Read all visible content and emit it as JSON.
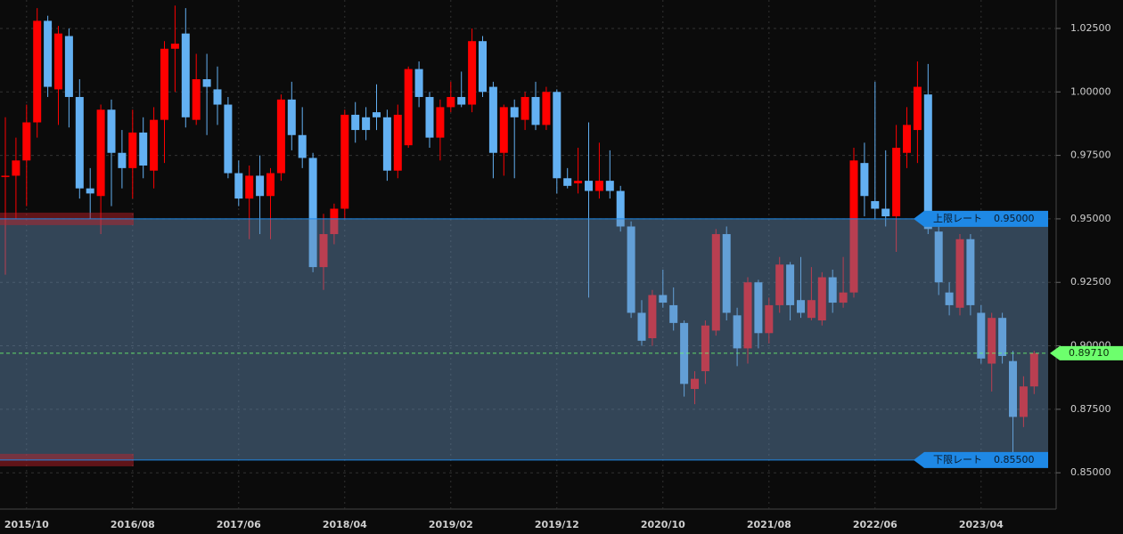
{
  "chart_data": {
    "type": "candlestick",
    "categories": [
      null,
      null,
      "2015/10",
      null,
      null,
      null,
      null,
      null,
      null,
      null,
      null,
      null,
      "2016/08",
      null,
      null,
      null,
      null,
      null,
      null,
      null,
      null,
      null,
      "2017/06",
      null,
      null,
      null,
      null,
      null,
      null,
      null,
      null,
      null,
      "2018/04",
      null,
      null,
      null,
      null,
      null,
      null,
      null,
      null,
      null,
      "2019/02",
      null,
      null,
      null,
      null,
      null,
      null,
      null,
      null,
      null,
      "2019/12",
      null,
      null,
      null,
      null,
      null,
      null,
      null,
      null,
      null,
      "2020/10",
      null,
      null,
      null,
      null,
      null,
      null,
      null,
      null,
      null,
      "2021/08",
      null,
      null,
      null,
      null,
      null,
      null,
      null,
      null,
      null,
      "2022/06",
      null,
      null,
      null,
      null,
      null,
      null,
      null,
      null,
      null,
      "2023/04",
      null,
      null,
      null,
      null,
      null
    ],
    "open": [
      0.9665,
      0.967,
      0.973,
      0.988,
      1.028,
      1.001,
      1.022,
      0.998,
      0.962,
      0.959,
      0.993,
      0.976,
      0.97,
      0.984,
      0.969,
      0.989,
      1.017,
      1.023,
      0.989,
      1.005,
      1.001,
      0.995,
      0.968,
      0.958,
      0.967,
      0.959,
      0.968,
      0.997,
      0.983,
      0.974,
      0.931,
      0.944,
      0.954,
      0.991,
      0.99,
      0.992,
      0.99,
      0.969,
      0.979,
      1.009,
      0.998,
      0.982,
      0.994,
      0.998,
      0.995,
      1.02,
      1.002,
      0.976,
      0.994,
      0.989,
      0.998,
      0.987,
      1.0,
      0.966,
      0.964,
      0.965,
      0.961,
      0.965,
      0.961,
      0.947,
      0.913,
      0.903,
      0.92,
      0.916,
      0.909,
      0.883,
      0.89,
      0.906,
      0.944,
      0.912,
      0.899,
      0.925,
      0.905,
      0.916,
      0.932,
      0.918,
      0.911,
      0.91,
      0.927,
      0.917,
      0.921,
      0.972,
      0.957,
      0.954,
      0.951,
      0.976,
      0.985,
      0.999,
      0.945,
      0.921,
      0.915,
      0.942,
      0.913,
      0.893,
      0.911,
      0.894,
      0.872,
      0.884
    ],
    "high": [
      0.99,
      0.982,
      0.995,
      1.033,
      1.03,
      1.026,
      1.025,
      1.005,
      0.97,
      0.995,
      0.997,
      0.985,
      0.993,
      0.99,
      0.994,
      1.02,
      1.034,
      1.033,
      1.015,
      1.015,
      1.01,
      0.998,
      0.973,
      0.971,
      0.975,
      0.97,
      0.999,
      1.004,
      0.994,
      0.976,
      0.952,
      0.956,
      0.993,
      0.996,
      0.994,
      1.003,
      0.993,
      0.995,
      1.01,
      1.012,
      1.0,
      0.997,
      1.004,
      1.008,
      1.025,
      1.022,
      1.004,
      0.995,
      0.997,
      1.0,
      1.004,
      1.002,
      1.001,
      0.97,
      0.978,
      0.988,
      0.98,
      0.977,
      0.963,
      0.949,
      0.918,
      0.922,
      0.93,
      0.923,
      0.91,
      0.89,
      0.91,
      0.946,
      0.947,
      0.915,
      0.927,
      0.926,
      0.919,
      0.935,
      0.933,
      0.935,
      0.931,
      0.929,
      0.93,
      0.935,
      0.978,
      0.98,
      1.004,
      0.977,
      0.987,
      0.994,
      1.012,
      1.011,
      0.947,
      0.925,
      0.944,
      0.944,
      0.916,
      0.913,
      0.913,
      0.898,
      0.888,
      0.898
    ],
    "low": [
      0.928,
      0.95,
      0.955,
      0.982,
      0.998,
      0.987,
      0.986,
      0.958,
      0.95,
      0.944,
      0.955,
      0.962,
      0.958,
      0.966,
      0.962,
      0.972,
      1.0,
      0.986,
      0.987,
      0.983,
      0.987,
      0.966,
      0.955,
      0.942,
      0.944,
      0.942,
      0.965,
      0.977,
      0.97,
      0.929,
      0.922,
      0.94,
      0.95,
      0.98,
      0.981,
      0.985,
      0.965,
      0.966,
      0.978,
      0.994,
      0.978,
      0.973,
      0.992,
      0.994,
      0.992,
      0.998,
      0.966,
      0.967,
      0.966,
      0.985,
      0.985,
      0.985,
      0.96,
      0.962,
      0.96,
      0.919,
      0.958,
      0.958,
      0.945,
      0.911,
      0.9,
      0.9,
      0.915,
      0.906,
      0.88,
      0.877,
      0.885,
      0.904,
      0.91,
      0.892,
      0.893,
      0.899,
      0.901,
      0.913,
      0.91,
      0.911,
      0.91,
      0.908,
      0.913,
      0.915,
      0.919,
      0.951,
      0.95,
      0.947,
      0.937,
      0.97,
      0.972,
      0.944,
      0.92,
      0.912,
      0.912,
      0.912,
      0.893,
      0.882,
      0.893,
      0.857,
      0.868,
      0.881
    ],
    "close": [
      0.967,
      0.973,
      0.988,
      1.028,
      1.002,
      1.023,
      0.998,
      0.962,
      0.96,
      0.993,
      0.976,
      0.97,
      0.984,
      0.971,
      0.989,
      1.017,
      1.019,
      0.99,
      1.005,
      1.002,
      0.995,
      0.968,
      0.958,
      0.967,
      0.959,
      0.968,
      0.997,
      0.983,
      0.974,
      0.931,
      0.944,
      0.954,
      0.991,
      0.985,
      0.985,
      0.99,
      0.969,
      0.991,
      1.009,
      0.998,
      0.982,
      0.994,
      0.998,
      0.995,
      1.02,
      1.0,
      0.976,
      0.994,
      0.99,
      0.998,
      0.987,
      1.0,
      0.966,
      0.963,
      0.965,
      0.961,
      0.965,
      0.961,
      0.947,
      0.913,
      0.902,
      0.92,
      0.917,
      0.909,
      0.885,
      0.887,
      0.908,
      0.944,
      0.913,
      0.899,
      0.925,
      0.905,
      0.916,
      0.932,
      0.916,
      0.913,
      0.918,
      0.927,
      0.917,
      0.921,
      0.973,
      0.959,
      0.954,
      0.951,
      0.978,
      0.987,
      1.002,
      0.946,
      0.925,
      0.916,
      0.942,
      0.916,
      0.895,
      0.911,
      0.896,
      0.872,
      0.884,
      0.8971
    ],
    "up_color": "#ff0000",
    "down_color": "#63b0f2",
    "ylim": [
      0.8364,
      1.0362
    ],
    "yticks": [
      {
        "value": 0.85,
        "label": "0.85000"
      },
      {
        "value": 0.875,
        "label": "0.87500"
      },
      {
        "value": 0.9,
        "label": "0.90000"
      },
      {
        "value": 0.925,
        "label": "0.92500"
      },
      {
        "value": 0.95,
        "label": "0.95000"
      },
      {
        "value": 0.975,
        "label": "0.97500"
      },
      {
        "value": 1.0,
        "label": "1.00000"
      },
      {
        "value": 1.025,
        "label": "1.02500"
      }
    ],
    "grid": true,
    "current": {
      "value": 0.8971,
      "label": "0.89710",
      "color": "#6dff6d"
    },
    "range": {
      "upper": {
        "name": "上限レート",
        "value": 0.95,
        "value_label": "0.95000"
      },
      "lower": {
        "name": "下限レート",
        "value": 0.855,
        "value_label": "0.85500"
      },
      "color": "#1e88e5"
    }
  }
}
